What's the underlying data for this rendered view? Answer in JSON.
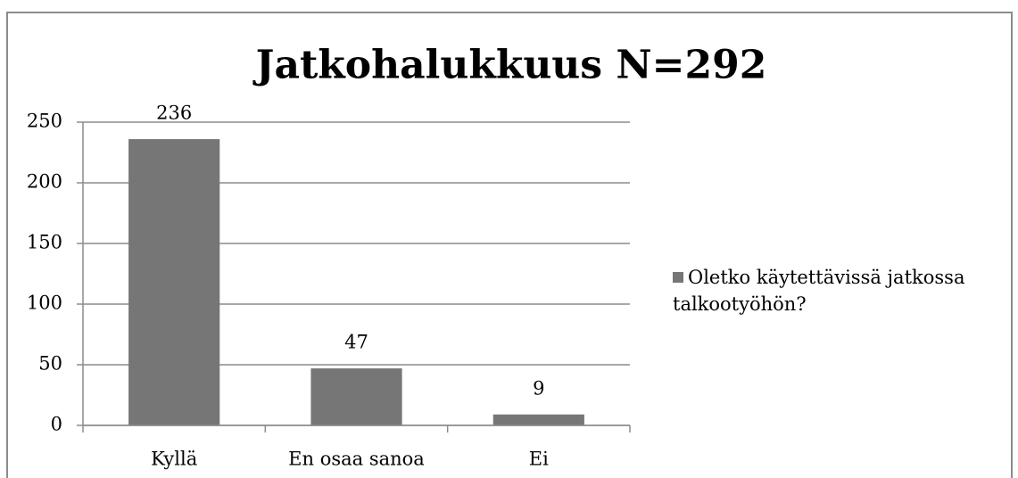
{
  "chart_data": {
    "type": "bar",
    "title": "Jatkohalukkuus N=292",
    "categories": [
      "Kyllä",
      "En osaa sanoa",
      "Ei"
    ],
    "series": [
      {
        "name": "Oletko käytettävissä jatkossa talkootyöhön?",
        "color": "#767676",
        "values": [
          236,
          47,
          9
        ]
      }
    ],
    "ylim": [
      0,
      250
    ],
    "yticks": [
      0,
      50,
      100,
      150,
      200,
      250
    ],
    "grid": true,
    "legend": "right"
  }
}
